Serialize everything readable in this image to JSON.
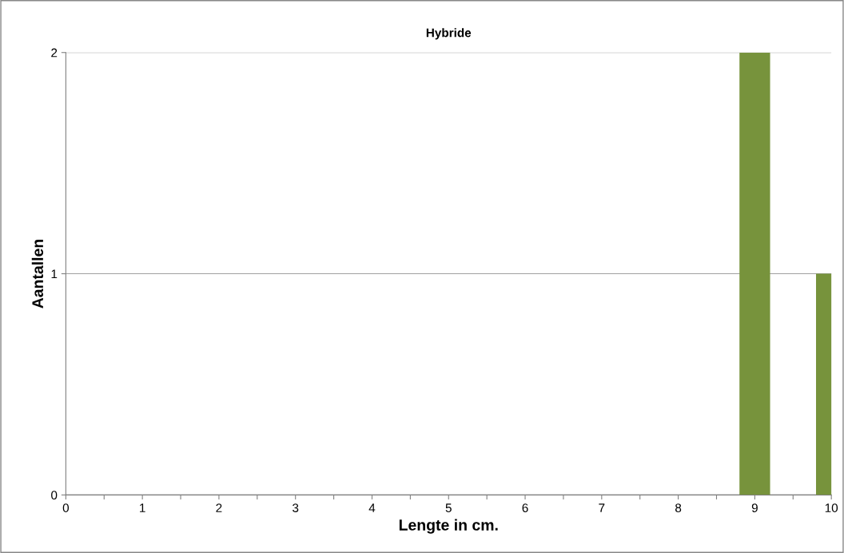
{
  "chart_data": {
    "type": "bar",
    "title": "Hybride",
    "xlabel": "Lengte in cm.",
    "ylabel": "Aantallen",
    "x": [
      9,
      10
    ],
    "series": [
      {
        "color": "#77933c",
        "values": [
          2,
          1
        ]
      }
    ],
    "xlim": [
      0,
      10
    ],
    "xticks": [
      0,
      {
        "value": 0.5,
        "label": null
      },
      1,
      {
        "value": 1.5,
        "label": null
      },
      2,
      {
        "value": 2.5,
        "label": null
      },
      3,
      {
        "value": 3.5,
        "label": null
      },
      4,
      {
        "value": 4.5,
        "label": null
      },
      5,
      {
        "value": 5.5,
        "label": null
      },
      6,
      {
        "value": 6.5,
        "label": null
      },
      7,
      {
        "value": 7.5,
        "label": null
      },
      8,
      {
        "value": 8.5,
        "label": null
      },
      9,
      {
        "value": 9.5,
        "label": null
      },
      10
    ],
    "ylim": [
      0,
      2
    ],
    "yticks": [
      0,
      1,
      2
    ],
    "grid": "y"
  }
}
